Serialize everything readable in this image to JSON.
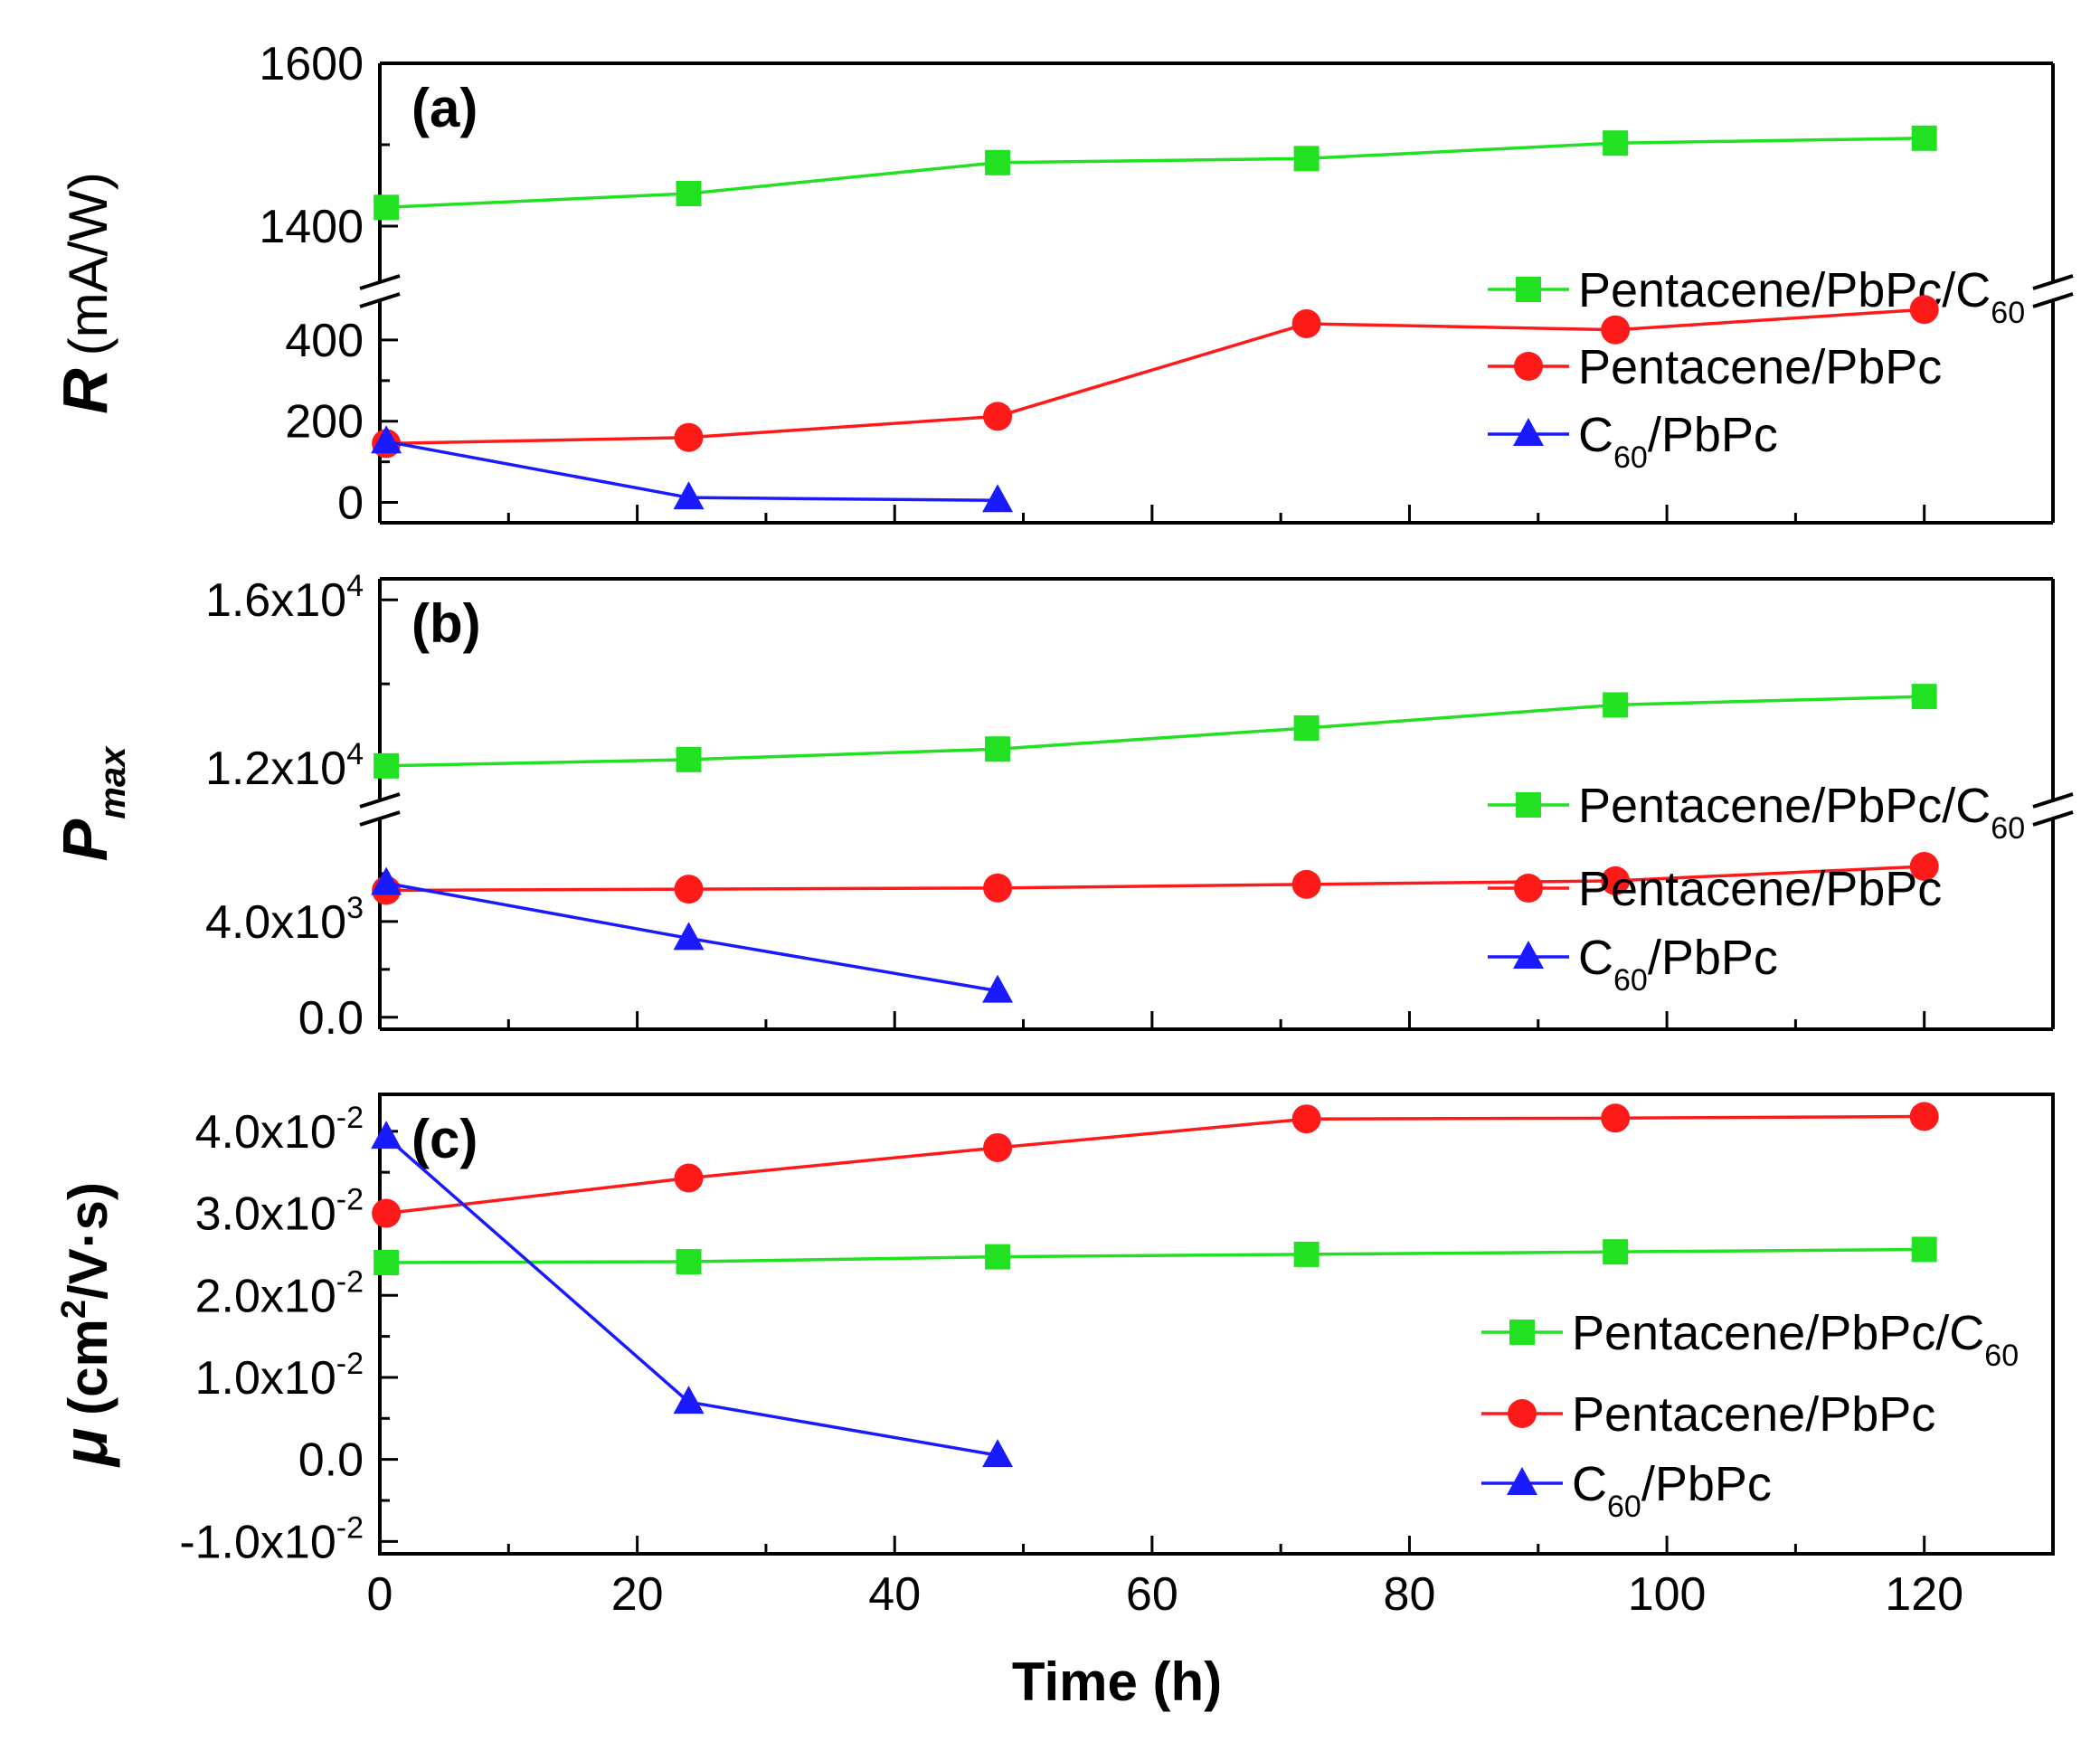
{
  "chart_data": [
    {
      "panel": "(a)",
      "type": "line",
      "ylabel_symbol": "R",
      "ylabel_unit": "(mA/W)",
      "broken_axis": true,
      "x_ticks": [
        "0",
        "20",
        "40",
        "60",
        "80",
        "100",
        "120"
      ],
      "xlim": [
        0,
        130
      ],
      "upper_ylim": [
        1340,
        1600
      ],
      "lower_ylim": [
        -50,
        480
      ],
      "upper_y_ticks": [
        {
          "value": 1400,
          "label": "1400"
        },
        {
          "value": 1600,
          "label": "1600"
        }
      ],
      "lower_y_ticks": [
        {
          "value": 0,
          "label": "0"
        },
        {
          "value": 200,
          "label": "200"
        },
        {
          "value": 400,
          "label": "400"
        }
      ],
      "series": [
        {
          "name": "Pentacene/PbPc/C",
          "name_sub": "60",
          "marker": "square",
          "color": "#22e022",
          "segment": "upper",
          "x": [
            0.5,
            24,
            48,
            72,
            96,
            120
          ],
          "values": [
            1423,
            1440,
            1478,
            1483,
            1502,
            1508
          ]
        },
        {
          "name": "Pentacene/PbPc",
          "name_sub": "",
          "marker": "circle",
          "color": "#ff1a1a",
          "segment": "lower",
          "x": [
            0.5,
            24,
            48,
            72,
            96,
            120
          ],
          "values": [
            145,
            160,
            212,
            440,
            425,
            475
          ]
        },
        {
          "name": "C",
          "name_sub": "60",
          "name_suffix": "/PbPc",
          "marker": "triangle",
          "color": "#1a1aff",
          "segment": "lower",
          "x": [
            0.5,
            24,
            48
          ],
          "values": [
            150,
            12,
            5
          ]
        }
      ]
    },
    {
      "panel": "(b)",
      "type": "line",
      "ylabel_symbol": "P",
      "ylabel_sub": "max",
      "broken_axis": true,
      "x_ticks": [
        "0",
        "20",
        "40",
        "60",
        "80",
        "100",
        "120"
      ],
      "xlim": [
        0,
        130
      ],
      "upper_ylim": [
        11400,
        16500
      ],
      "lower_ylim": [
        -500,
        8000
      ],
      "upper_y_ticks": [
        {
          "value": 12000,
          "base": "1.2x10",
          "exp": "4"
        },
        {
          "value": 16000,
          "base": "1.6x10",
          "exp": "4"
        }
      ],
      "lower_y_ticks": [
        {
          "value": 0,
          "base": "0.0",
          "exp": ""
        },
        {
          "value": 4000,
          "base": "4.0x10",
          "exp": "3"
        }
      ],
      "series": [
        {
          "name": "Pentacene/PbPc/C",
          "name_sub": "60",
          "marker": "square",
          "color": "#22e022",
          "segment": "upper",
          "x": [
            0.5,
            24,
            48,
            72,
            96,
            120
          ],
          "values": [
            12050,
            12200,
            12450,
            12950,
            13500,
            13700
          ]
        },
        {
          "name": "Pentacene/PbPc",
          "name_sub": "",
          "marker": "circle",
          "color": "#ff1a1a",
          "segment": "lower",
          "x": [
            0.5,
            24,
            48,
            72,
            96,
            120
          ],
          "values": [
            5300,
            5350,
            5400,
            5550,
            5700,
            6300
          ]
        },
        {
          "name": "C",
          "name_sub": "60",
          "name_suffix": "/PbPc",
          "marker": "triangle",
          "color": "#1a1aff",
          "segment": "lower",
          "x": [
            0.5,
            24,
            48
          ],
          "values": [
            5600,
            3300,
            1100
          ]
        }
      ]
    },
    {
      "panel": "(c)",
      "type": "line",
      "ylabel_symbol": "μ",
      "ylabel_unit_pre": "(cm",
      "ylabel_unit_sup": "2",
      "ylabel_unit_post": "/V·s)",
      "broken_axis": false,
      "x_ticks": [
        "0",
        "20",
        "40",
        "60",
        "80",
        "100",
        "120"
      ],
      "xlim": [
        0,
        130
      ],
      "ylim": [
        -0.0115,
        0.0445
      ],
      "y_ticks": [
        {
          "value": -0.01,
          "base": "-1.0x10",
          "exp": "-2"
        },
        {
          "value": 0.0,
          "base": "0.0",
          "exp": ""
        },
        {
          "value": 0.01,
          "base": "1.0x10",
          "exp": "-2"
        },
        {
          "value": 0.02,
          "base": "2.0x10",
          "exp": "-2"
        },
        {
          "value": 0.03,
          "base": "3.0x10",
          "exp": "-2"
        },
        {
          "value": 0.04,
          "base": "4.0x10",
          "exp": "-2"
        }
      ],
      "xlabel": "Time (h)",
      "series": [
        {
          "name": "Pentacene/PbPc/C",
          "name_sub": "60",
          "marker": "square",
          "color": "#22e022",
          "x": [
            0.5,
            24,
            48,
            72,
            96,
            120
          ],
          "values": [
            0.024,
            0.0241,
            0.0247,
            0.025,
            0.0253,
            0.0256
          ]
        },
        {
          "name": "Pentacene/PbPc",
          "name_sub": "",
          "marker": "circle",
          "color": "#ff1a1a",
          "x": [
            0.5,
            24,
            48,
            72,
            96,
            120
          ],
          "values": [
            0.03,
            0.0343,
            0.038,
            0.0415,
            0.0416,
            0.0418
          ]
        },
        {
          "name": "C",
          "name_sub": "60",
          "name_suffix": "/PbPc",
          "marker": "triangle",
          "color": "#1a1aff",
          "x": [
            0.5,
            24,
            48
          ],
          "values": [
            0.0393,
            0.007,
            0.0005
          ]
        }
      ]
    }
  ]
}
